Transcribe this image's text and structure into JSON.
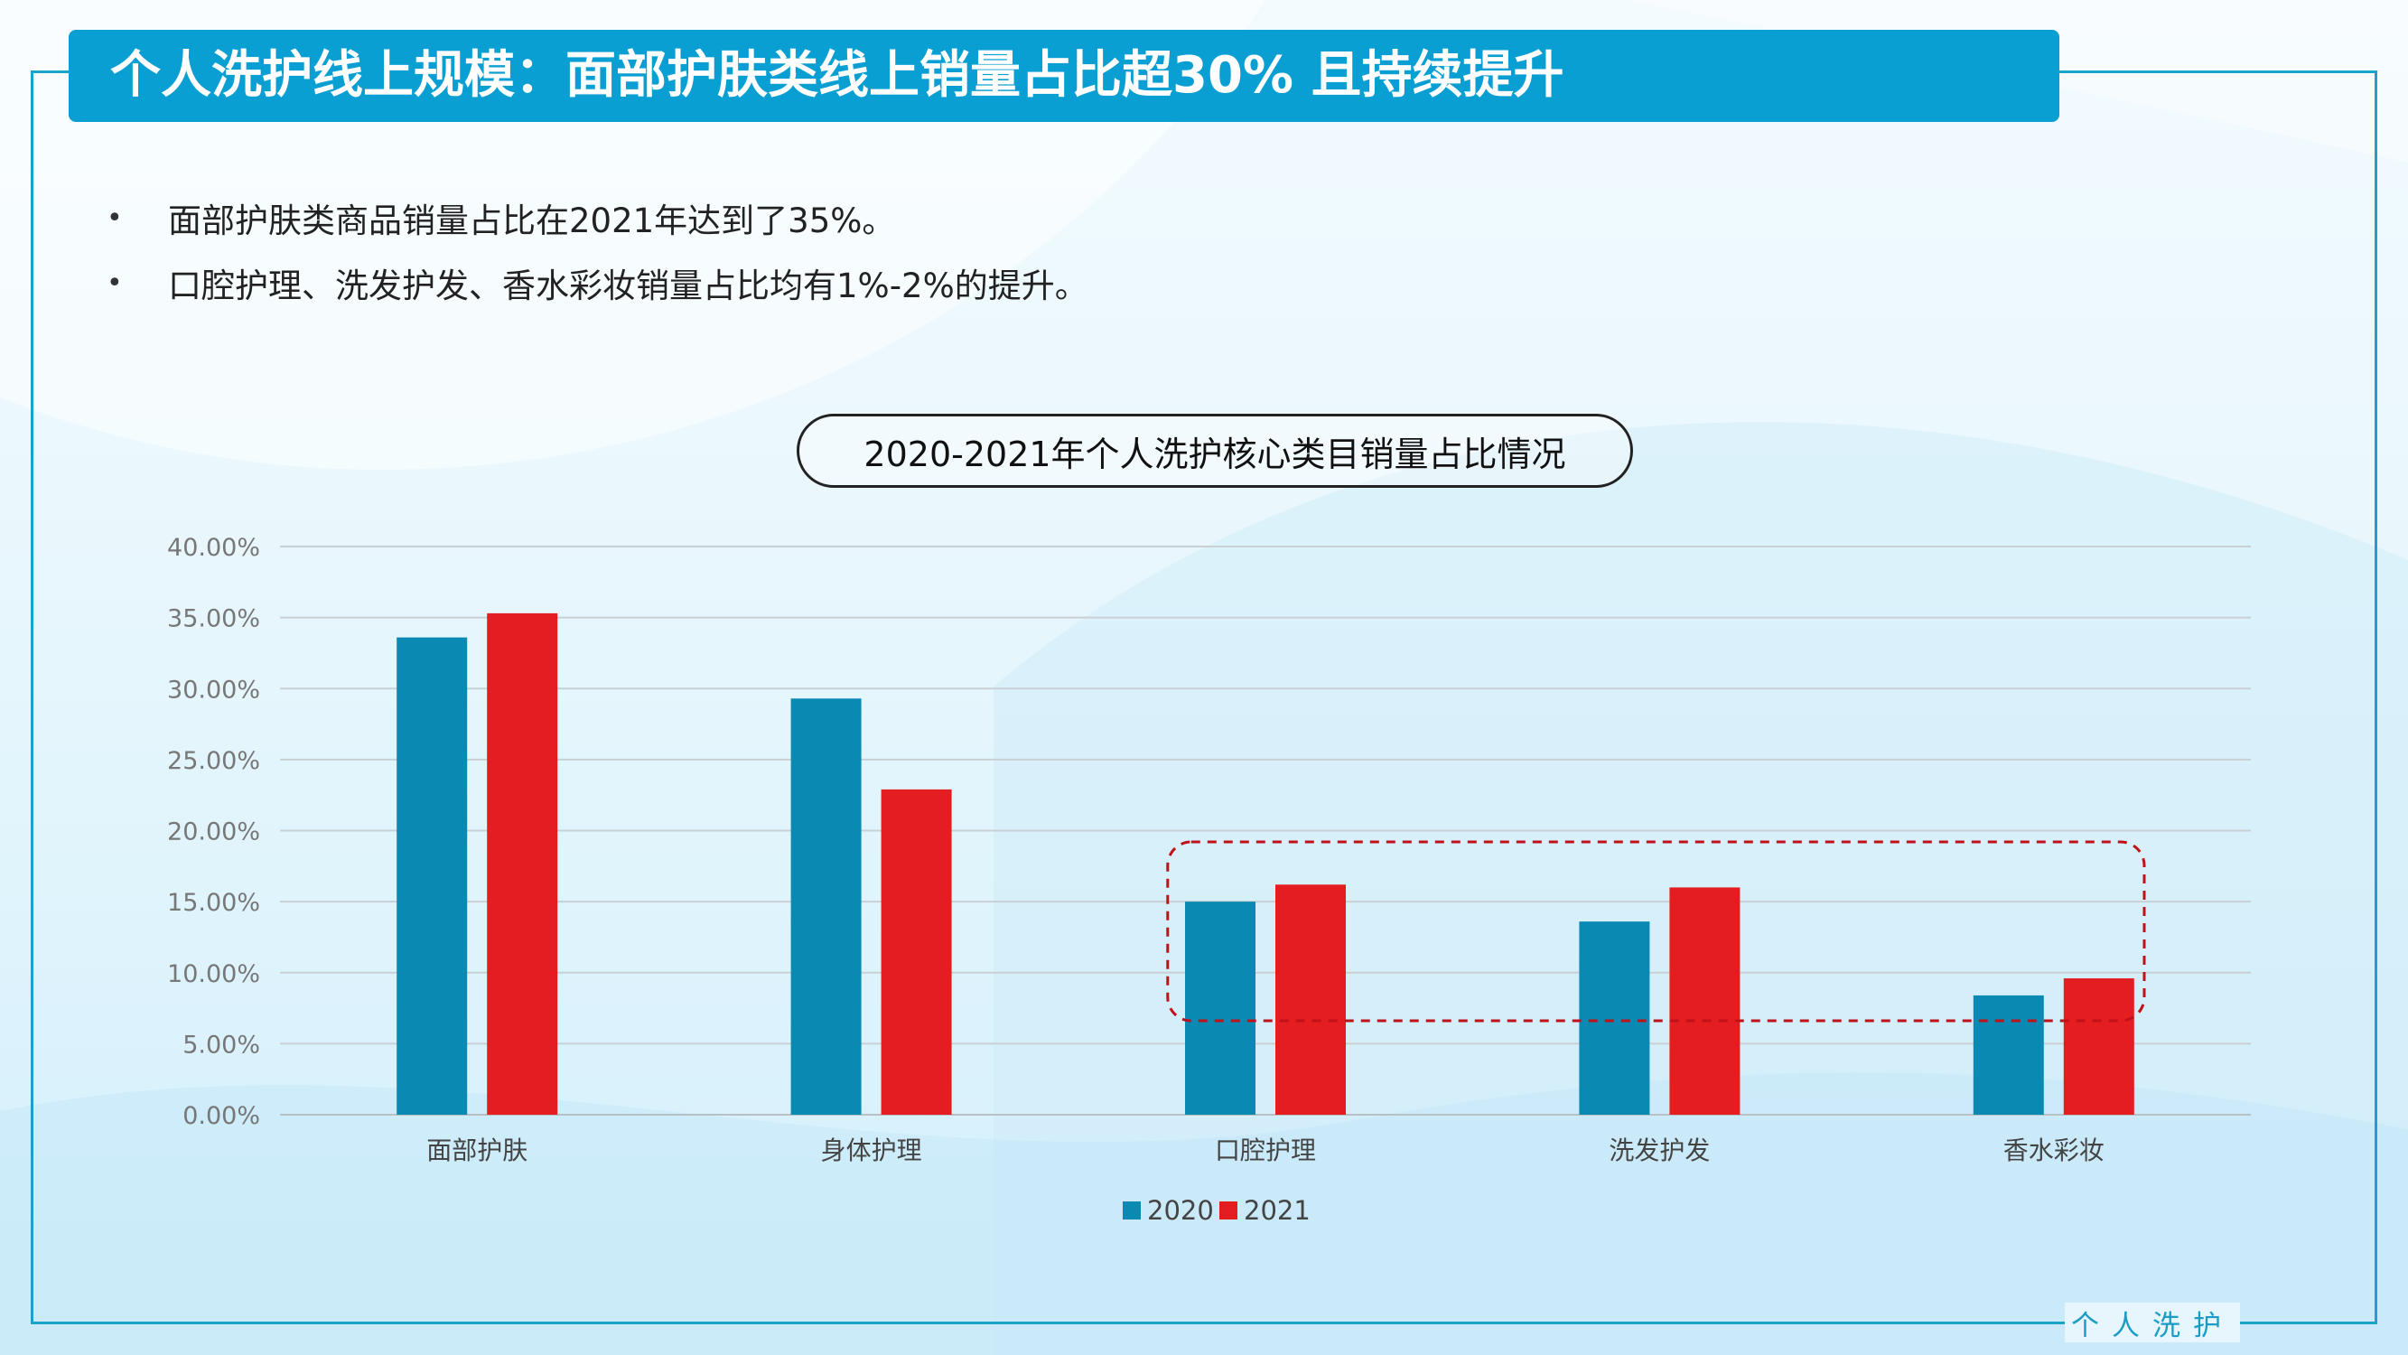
{
  "header": {
    "title": "个人洗护线上规模：面部护肤类线上销量占比超30% 且持续提升"
  },
  "bullets": [
    "面部护肤类商品销量占比在2021年达到了35%。",
    "口腔护理、洗发护发、香水彩妆销量占比均有1%-2%的提升。"
  ],
  "footer": {
    "label": "个人洗护"
  },
  "colors": {
    "accent": "#0a9fd2",
    "series_2020": "#0a8ab2",
    "series_2021": "#e41e20",
    "highlight": "#c0101a"
  },
  "chart_data": {
    "type": "bar",
    "title": "2020-2021年个人洗护核心类目销量占比情况",
    "categories": [
      "面部护肤",
      "身体护理",
      "口腔护理",
      "洗发护发",
      "香水彩妆"
    ],
    "series": [
      {
        "name": "2020",
        "values": [
          33.6,
          29.3,
          15.0,
          13.6,
          8.4
        ]
      },
      {
        "name": "2021",
        "values": [
          35.3,
          22.9,
          16.2,
          16.0,
          9.6
        ]
      }
    ],
    "ylim": [
      0,
      40
    ],
    "y_ticks": [
      "0.00%",
      "5.00%",
      "10.00%",
      "15.00%",
      "20.00%",
      "25.00%",
      "30.00%",
      "35.00%",
      "40.00%"
    ],
    "grid": true,
    "legend": "bottom-center",
    "highlight_categories": [
      "口腔护理",
      "洗发护发",
      "香水彩妆"
    ]
  }
}
